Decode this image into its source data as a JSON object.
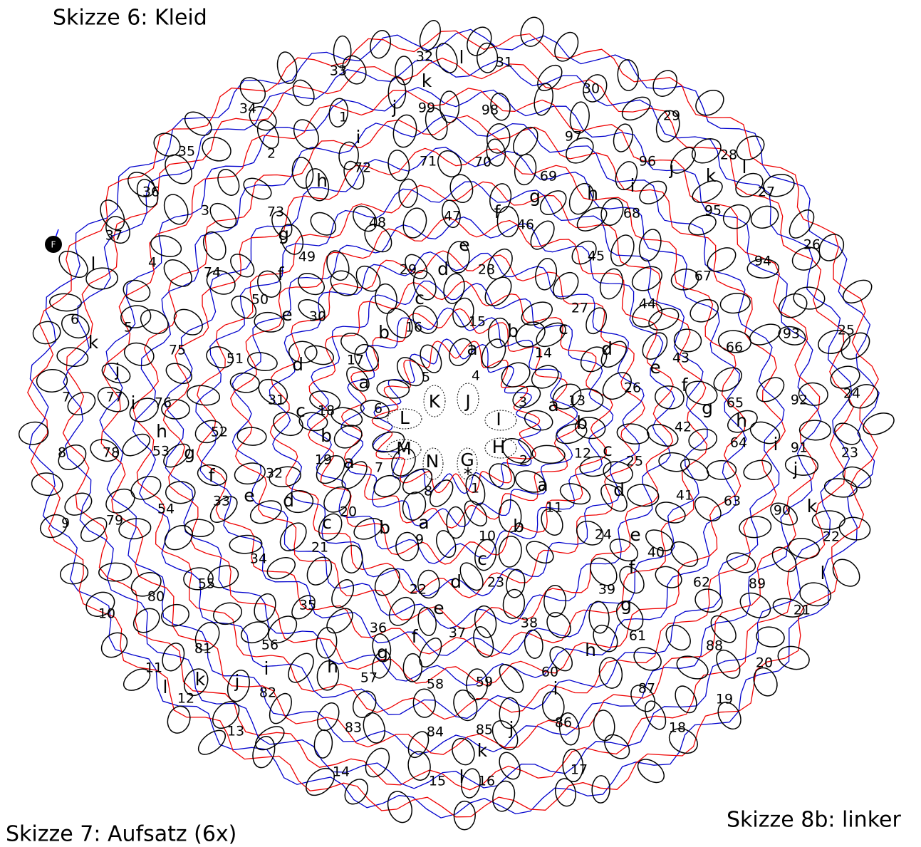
{
  "header": {
    "title": "Skizze 6: Kleid"
  },
  "footer": {
    "left": "Skizze 7: Aufsatz (6x)",
    "right": "Skizze 8b: linker"
  },
  "marker": "F",
  "numbers": [
    "32",
    "31",
    "33",
    "30",
    "34",
    "99",
    "98",
    "1",
    "29",
    "97",
    "35",
    "2",
    "96",
    "28",
    "72",
    "71",
    "70",
    "69",
    "36",
    "27",
    "3",
    "73",
    "47",
    "68",
    "95",
    "48",
    "46",
    "37",
    "26",
    "4",
    "49",
    "74",
    "29",
    "28",
    "45",
    "94",
    "67",
    "50",
    "30",
    "27",
    "44",
    "6",
    "5",
    "15",
    "16",
    "14",
    "93",
    "25",
    "66",
    "75",
    "51",
    "17",
    "43",
    "5",
    "4",
    "26",
    "3",
    "7",
    "77",
    "76",
    "31",
    "18",
    "6",
    "13",
    "65",
    "92",
    "24",
    "42",
    "52",
    "64",
    "91",
    "23",
    "8",
    "78",
    "53",
    "12",
    "25",
    "19",
    "7",
    "2",
    "32",
    "8",
    "1",
    "41",
    "63",
    "90",
    "11",
    "33",
    "54",
    "9",
    "79",
    "20",
    "24",
    "22",
    "21",
    "10",
    "9",
    "40",
    "34",
    "55",
    "80",
    "23",
    "22",
    "39",
    "62",
    "89",
    "35",
    "10",
    "21",
    "38",
    "36",
    "37",
    "61",
    "88",
    "56",
    "81",
    "11",
    "20",
    "60",
    "57",
    "58",
    "59",
    "82",
    "12",
    "87",
    "19",
    "83",
    "84",
    "85",
    "86",
    "18",
    "13",
    "14",
    "15",
    "16",
    "17"
  ],
  "letters": [
    "l",
    "k",
    "j",
    "i",
    "h",
    "g",
    "f",
    "e",
    "d",
    "c",
    "b",
    "a",
    "a",
    "b",
    "c",
    "d",
    "e",
    "f",
    "g",
    "h",
    "i",
    "j",
    "k",
    "l",
    "a",
    "b",
    "c",
    "d",
    "e",
    "f",
    "g",
    "h",
    "i",
    "j",
    "k",
    "l",
    "a",
    "b",
    "c",
    "d",
    "e",
    "f",
    "g",
    "h",
    "i",
    "j",
    "k",
    "l",
    "a",
    "b",
    "c",
    "d",
    "e",
    "f",
    "g",
    "h",
    "i",
    "j",
    "k",
    "l",
    "a",
    "b",
    "c",
    "d",
    "e",
    "f",
    "g",
    "h",
    "i",
    "j",
    "k",
    "l",
    "K",
    "J",
    "L",
    "I",
    "M",
    "H",
    "N",
    "G",
    "*"
  ]
}
